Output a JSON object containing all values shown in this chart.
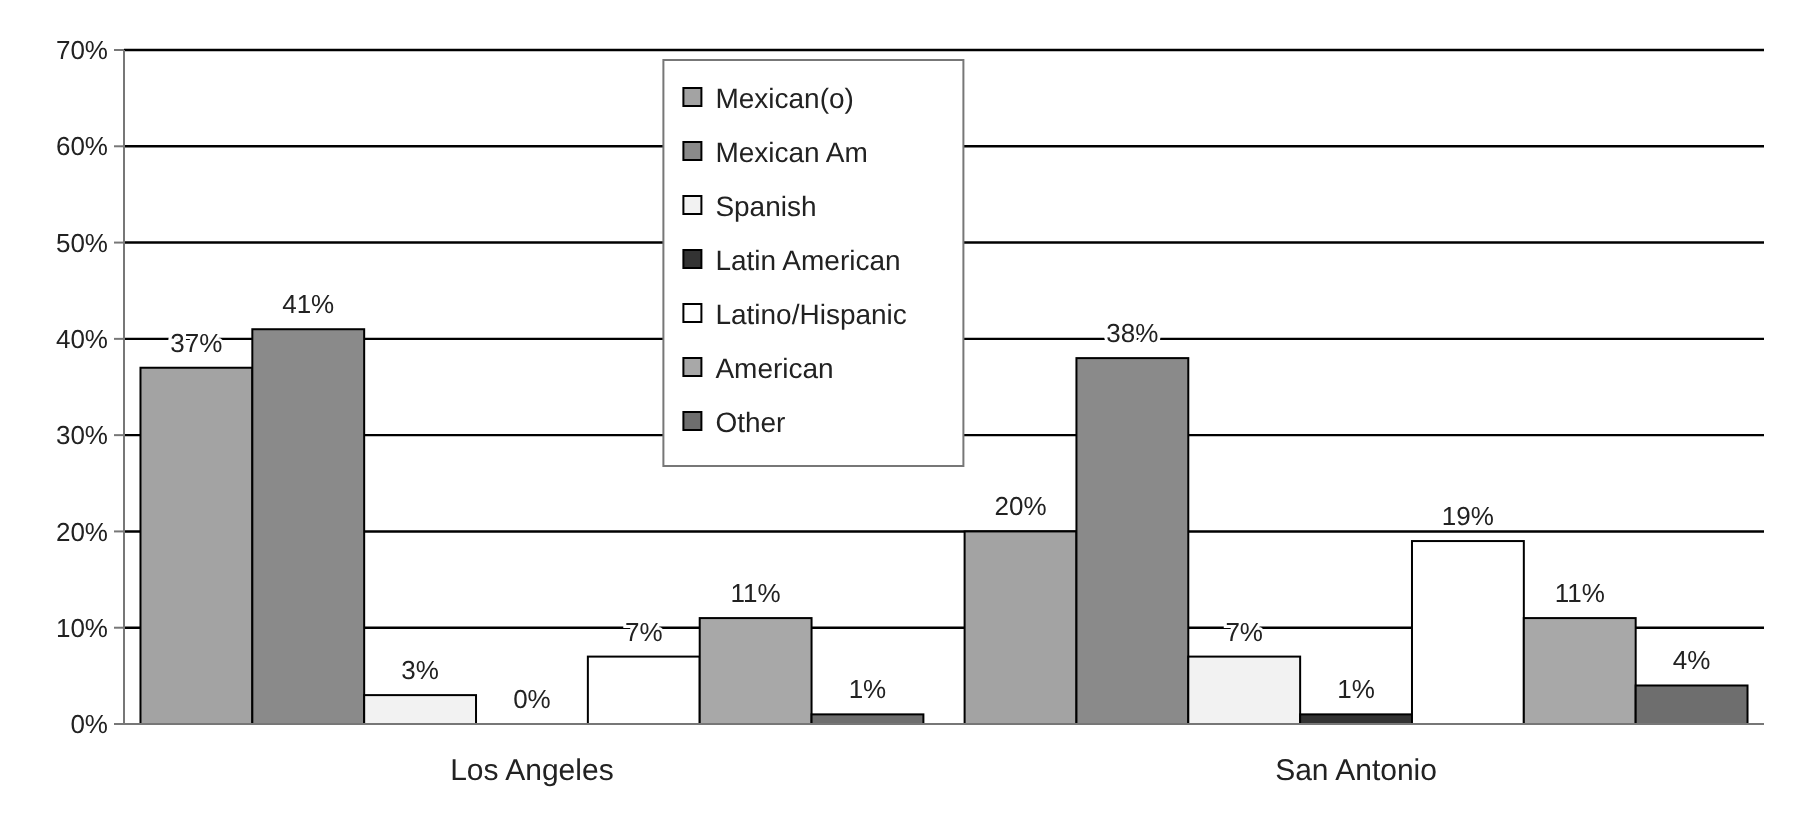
{
  "chart_data": {
    "type": "bar",
    "categories": [
      "Los Angeles",
      "San Antonio"
    ],
    "series": [
      {
        "name": "Mexican(o)",
        "color": "#a3a3a3",
        "values": [
          37,
          20
        ],
        "value_labels": [
          "37%",
          "20%"
        ]
      },
      {
        "name": "Mexican Am",
        "color": "#8a8a8a",
        "values": [
          41,
          38
        ],
        "value_labels": [
          "41%",
          "38%"
        ]
      },
      {
        "name": "Spanish",
        "color": "#f2f2f2",
        "values": [
          3,
          7
        ],
        "value_labels": [
          "3%",
          "7%"
        ]
      },
      {
        "name": "Latin American",
        "color": "#333333",
        "values": [
          0,
          1
        ],
        "value_labels": [
          "0%",
          "1%"
        ]
      },
      {
        "name": "Latino/Hispanic",
        "color": "#ffffff",
        "values": [
          7,
          19
        ],
        "value_labels": [
          "7%",
          "19%"
        ]
      },
      {
        "name": "American",
        "color": "#a8a8a8",
        "values": [
          11,
          11
        ],
        "value_labels": [
          "11%",
          "11%"
        ]
      },
      {
        "name": "Other",
        "color": "#6e6e6e",
        "values": [
          1,
          4
        ],
        "value_labels": [
          "1%",
          "4%"
        ]
      }
    ],
    "ylim": [
      0,
      70
    ],
    "yticks": [
      {
        "value": 0,
        "label": "0%"
      },
      {
        "value": 10,
        "label": "10%"
      },
      {
        "value": 20,
        "label": "20%"
      },
      {
        "value": 30,
        "label": "30%"
      },
      {
        "value": 40,
        "label": "40%"
      },
      {
        "value": 50,
        "label": "50%"
      },
      {
        "value": 60,
        "label": "60%"
      },
      {
        "value": 70,
        "label": "70%"
      }
    ],
    "grid": "y",
    "legend": "top"
  }
}
